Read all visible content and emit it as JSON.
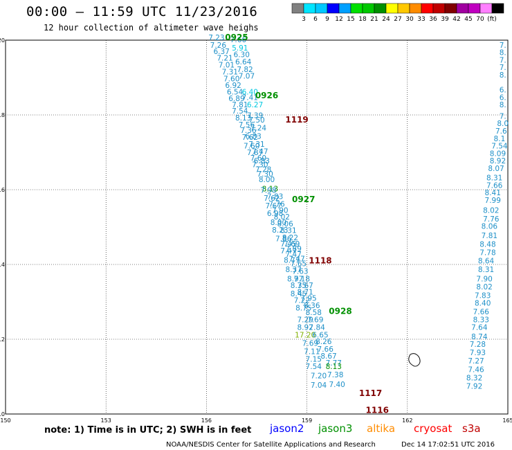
{
  "header": {
    "title": "00:00 – 11:59 UTC 11/23/2016",
    "subtitle": "12 hour collection of altimeter wave heighs"
  },
  "legend": {
    "colors": [
      "#808080",
      "#00e5ff",
      "#00c8ff",
      "#0000ff",
      "#00a0ff",
      "#00e000",
      "#00c800",
      "#009000",
      "#ffff00",
      "#ffc800",
      "#ff8c00",
      "#ff0000",
      "#c00000",
      "#800000",
      "#a000a0",
      "#c000c0",
      "#ff80ff",
      "#000000"
    ],
    "labels": [
      "3",
      "6",
      "9",
      "12",
      "15",
      "18",
      "21",
      "24",
      "27",
      "30",
      "33",
      "36",
      "39",
      "42",
      "45",
      "70",
      "(ft)"
    ]
  },
  "footer": {
    "note": "note: 1) Time is in UTC; 2) SWH is in feet",
    "satellites": [
      {
        "name": "jason2",
        "color": "#0000ff"
      },
      {
        "name": "jason3",
        "color": "#009000"
      },
      {
        "name": "altika",
        "color": "#ff8c00"
      },
      {
        "name": "cryosat",
        "color": "#ff0000"
      },
      {
        "name": "s3a",
        "color": "#c00000"
      }
    ],
    "credit": "NOAA/NESDIS Center for Satellite Applications and Research",
    "timestamp": "Dec 14 17:02:51 UTC 2016"
  },
  "chart_data": {
    "type": "scatter",
    "xlim": [
      150,
      165
    ],
    "ylim": [
      10,
      20
    ],
    "xticks": [
      "150",
      "153",
      "156",
      "159",
      "162",
      "165"
    ],
    "yticks": [
      "10",
      "12",
      "14",
      "16",
      "18",
      "20"
    ],
    "grid": true,
    "track_labels": [
      {
        "text": "0925",
        "lon": 156.9,
        "lat": 20.0,
        "color": "#009000"
      },
      {
        "text": "0926",
        "lon": 157.8,
        "lat": 18.44,
        "color": "#009000"
      },
      {
        "text": "1119",
        "lon": 158.7,
        "lat": 17.8,
        "color": "#800000"
      },
      {
        "text": "0927",
        "lon": 158.9,
        "lat": 15.67,
        "color": "#009000"
      },
      {
        "text": "1118",
        "lon": 159.4,
        "lat": 14.03,
        "color": "#800000"
      },
      {
        "text": "0928",
        "lon": 160.0,
        "lat": 12.68,
        "color": "#009000"
      },
      {
        "text": "1117",
        "lon": 160.9,
        "lat": 10.48,
        "color": "#800000"
      },
      {
        "text": "1116",
        "lon": 161.1,
        "lat": 10.03,
        "color": "#800000"
      }
    ],
    "points": [
      {
        "lon": 156.3,
        "lat": 20.0,
        "v": "7.23",
        "c": "#1e90c8"
      },
      {
        "lon": 156.95,
        "lat": 19.94,
        "v": "7.66",
        "c": "#1e90c8"
      },
      {
        "lon": 156.35,
        "lat": 19.8,
        "v": "7.26",
        "c": "#1e90c8"
      },
      {
        "lon": 157.0,
        "lat": 19.72,
        "v": "5.91",
        "c": "#00c8e0"
      },
      {
        "lon": 156.45,
        "lat": 19.63,
        "v": "6.37",
        "c": "#1e90c8"
      },
      {
        "lon": 157.05,
        "lat": 19.55,
        "v": "6.30",
        "c": "#1e90c8"
      },
      {
        "lon": 156.55,
        "lat": 19.45,
        "v": "7.21",
        "c": "#1e90c8"
      },
      {
        "lon": 157.1,
        "lat": 19.35,
        "v": "6.64",
        "c": "#1e90c8"
      },
      {
        "lon": 156.6,
        "lat": 19.27,
        "v": "7.01",
        "c": "#1e90c8"
      },
      {
        "lon": 157.15,
        "lat": 19.15,
        "v": "7.82",
        "c": "#1e90c8"
      },
      {
        "lon": 156.7,
        "lat": 19.08,
        "v": "7.31",
        "c": "#1e90c8"
      },
      {
        "lon": 157.2,
        "lat": 18.97,
        "v": "7.07",
        "c": "#1e90c8"
      },
      {
        "lon": 156.75,
        "lat": 18.9,
        "v": "7.60",
        "c": "#1e90c8"
      },
      {
        "lon": 156.8,
        "lat": 18.72,
        "v": "6.92",
        "c": "#1e90c8"
      },
      {
        "lon": 157.3,
        "lat": 18.55,
        "v": "6.40",
        "c": "#00c8e0"
      },
      {
        "lon": 156.85,
        "lat": 18.55,
        "v": "6.54",
        "c": "#1e90c8"
      },
      {
        "lon": 157.3,
        "lat": 18.4,
        "v": "7.41",
        "c": "#1e90c8"
      },
      {
        "lon": 156.9,
        "lat": 18.37,
        "v": "6.89",
        "c": "#1e90c8"
      },
      {
        "lon": 157.0,
        "lat": 18.2,
        "v": "7.81",
        "c": "#1e90c8"
      },
      {
        "lon": 157.45,
        "lat": 18.2,
        "v": "6.27",
        "c": "#00c8e0"
      },
      {
        "lon": 157.45,
        "lat": 17.92,
        "v": "7.39",
        "c": "#1e90c8"
      },
      {
        "lon": 157.0,
        "lat": 18.04,
        "v": "7.54",
        "c": "#1e90c8"
      },
      {
        "lon": 157.1,
        "lat": 17.85,
        "v": "8.13",
        "c": "#1e90c8"
      },
      {
        "lon": 157.5,
        "lat": 17.8,
        "v": "7.50",
        "c": "#1e90c8"
      },
      {
        "lon": 157.2,
        "lat": 17.67,
        "v": "7.56",
        "c": "#1e90c8"
      },
      {
        "lon": 157.55,
        "lat": 17.58,
        "v": "7.24",
        "c": "#1e90c8"
      },
      {
        "lon": 157.25,
        "lat": 17.52,
        "v": "7.36",
        "c": "#1e90c8"
      },
      {
        "lon": 157.4,
        "lat": 17.36,
        "v": "6.83",
        "c": "#1e90c8"
      },
      {
        "lon": 157.3,
        "lat": 17.33,
        "v": "7.62",
        "c": "#1e90c8"
      },
      {
        "lon": 157.5,
        "lat": 17.15,
        "v": "7.31",
        "c": "#1e90c8"
      },
      {
        "lon": 157.35,
        "lat": 17.1,
        "v": "7.60",
        "c": "#1e90c8"
      },
      {
        "lon": 157.6,
        "lat": 16.95,
        "v": "7.47",
        "c": "#1e90c8"
      },
      {
        "lon": 157.45,
        "lat": 16.93,
        "v": "7.87",
        "c": "#1e90c8"
      },
      {
        "lon": 157.55,
        "lat": 16.78,
        "v": "7.60",
        "c": "#1e90c8"
      },
      {
        "lon": 157.65,
        "lat": 16.7,
        "v": "6.83",
        "c": "#1e90c8"
      },
      {
        "lon": 157.6,
        "lat": 16.6,
        "v": "7.30",
        "c": "#1e90c8"
      },
      {
        "lon": 157.7,
        "lat": 16.47,
        "v": "7.28",
        "c": "#1e90c8"
      },
      {
        "lon": 157.75,
        "lat": 16.35,
        "v": "7.30",
        "c": "#1e90c8"
      },
      {
        "lon": 157.8,
        "lat": 16.2,
        "v": "8.00",
        "c": "#1e90c8"
      },
      {
        "lon": 157.9,
        "lat": 15.95,
        "v": "8.13",
        "c": "#009000"
      },
      {
        "lon": 157.85,
        "lat": 15.92,
        "v": "7.98",
        "c": "#1e90c8"
      },
      {
        "lon": 158.05,
        "lat": 15.75,
        "v": "7.83",
        "c": "#1e90c8"
      },
      {
        "lon": 157.95,
        "lat": 15.7,
        "v": "7.62",
        "c": "#1e90c8"
      },
      {
        "lon": 158.1,
        "lat": 15.55,
        "v": "7.76",
        "c": "#1e90c8"
      },
      {
        "lon": 158.0,
        "lat": 15.5,
        "v": "7.67",
        "c": "#1e90c8"
      },
      {
        "lon": 158.2,
        "lat": 15.38,
        "v": "7.90",
        "c": "#1e90c8"
      },
      {
        "lon": 158.05,
        "lat": 15.3,
        "v": "6.98",
        "c": "#1e90c8"
      },
      {
        "lon": 158.25,
        "lat": 15.2,
        "v": "8.02",
        "c": "#1e90c8"
      },
      {
        "lon": 158.15,
        "lat": 15.06,
        "v": "8.00",
        "c": "#1e90c8"
      },
      {
        "lon": 158.35,
        "lat": 15.02,
        "v": "8.06",
        "c": "#1e90c8"
      },
      {
        "lon": 158.2,
        "lat": 14.85,
        "v": "8.23",
        "c": "#1e90c8"
      },
      {
        "lon": 158.45,
        "lat": 14.84,
        "v": "8.31",
        "c": "#1e90c8"
      },
      {
        "lon": 158.5,
        "lat": 14.65,
        "v": "8.22",
        "c": "#1e90c8"
      },
      {
        "lon": 158.3,
        "lat": 14.62,
        "v": "7.86",
        "c": "#1e90c8"
      },
      {
        "lon": 158.55,
        "lat": 14.48,
        "v": "7.69",
        "c": "#1e90c8"
      },
      {
        "lon": 158.45,
        "lat": 14.48,
        "v": "7.45",
        "c": "#1e90c8"
      },
      {
        "lon": 158.6,
        "lat": 14.35,
        "v": "7.89",
        "c": "#1e90c8"
      },
      {
        "lon": 158.45,
        "lat": 14.3,
        "v": "7.47",
        "c": "#1e90c8"
      },
      {
        "lon": 158.6,
        "lat": 14.2,
        "v": "7.47",
        "c": "#1e90c8"
      },
      {
        "lon": 158.7,
        "lat": 14.08,
        "v": "7.47",
        "c": "#1e90c8"
      },
      {
        "lon": 158.55,
        "lat": 14.05,
        "v": "8.77",
        "c": "#1e90c8"
      },
      {
        "lon": 158.75,
        "lat": 13.95,
        "v": "7.65",
        "c": "#1e90c8"
      },
      {
        "lon": 158.6,
        "lat": 13.8,
        "v": "8.37",
        "c": "#1e90c8"
      },
      {
        "lon": 158.8,
        "lat": 13.75,
        "v": "7.63",
        "c": "#1e90c8"
      },
      {
        "lon": 158.65,
        "lat": 13.55,
        "v": "8.97",
        "c": "#1e90c8"
      },
      {
        "lon": 158.85,
        "lat": 13.55,
        "v": "7.18",
        "c": "#1e90c8"
      },
      {
        "lon": 158.75,
        "lat": 13.37,
        "v": "8.35",
        "c": "#1e90c8"
      },
      {
        "lon": 158.95,
        "lat": 13.37,
        "v": "7.67",
        "c": "#1e90c8"
      },
      {
        "lon": 158.95,
        "lat": 13.19,
        "v": "8.71",
        "c": "#1e90c8"
      },
      {
        "lon": 158.75,
        "lat": 13.15,
        "v": "8.45",
        "c": "#1e90c8"
      },
      {
        "lon": 159.05,
        "lat": 13.03,
        "v": "7.95",
        "c": "#1e90c8"
      },
      {
        "lon": 158.85,
        "lat": 12.97,
        "v": "7.22",
        "c": "#1e90c8"
      },
      {
        "lon": 159.15,
        "lat": 12.83,
        "v": "8.36",
        "c": "#1e90c8"
      },
      {
        "lon": 158.9,
        "lat": 12.77,
        "v": "8.75",
        "c": "#1e90c8"
      },
      {
        "lon": 159.2,
        "lat": 12.65,
        "v": "8.58",
        "c": "#1e90c8"
      },
      {
        "lon": 158.95,
        "lat": 12.45,
        "v": "7.29",
        "c": "#1e90c8"
      },
      {
        "lon": 159.25,
        "lat": 12.45,
        "v": "7.69",
        "c": "#1e90c8"
      },
      {
        "lon": 158.95,
        "lat": 12.25,
        "v": "8.92",
        "c": "#1e90c8"
      },
      {
        "lon": 159.3,
        "lat": 12.25,
        "v": "7.84",
        "c": "#1e90c8"
      },
      {
        "lon": 158.95,
        "lat": 12.05,
        "v": "17.20",
        "c": "#80b000"
      },
      {
        "lon": 159.4,
        "lat": 12.05,
        "v": "6.65",
        "c": "#1e90c8"
      },
      {
        "lon": 159.5,
        "lat": 11.87,
        "v": "8.26",
        "c": "#1e90c8"
      },
      {
        "lon": 159.1,
        "lat": 11.82,
        "v": "7.69",
        "c": "#1e90c8"
      },
      {
        "lon": 159.55,
        "lat": 11.67,
        "v": "7.66",
        "c": "#1e90c8"
      },
      {
        "lon": 159.15,
        "lat": 11.6,
        "v": "7.11",
        "c": "#1e90c8"
      },
      {
        "lon": 159.65,
        "lat": 11.48,
        "v": "8.67",
        "c": "#1e90c8"
      },
      {
        "lon": 159.2,
        "lat": 11.4,
        "v": "7.15",
        "c": "#1e90c8"
      },
      {
        "lon": 159.8,
        "lat": 11.3,
        "v": "7.77",
        "c": "#1e90c8"
      },
      {
        "lon": 159.2,
        "lat": 11.2,
        "v": "7.54",
        "c": "#1e90c8"
      },
      {
        "lon": 159.8,
        "lat": 11.2,
        "v": "8.13",
        "c": "#009000"
      },
      {
        "lon": 159.85,
        "lat": 10.98,
        "v": "7.38",
        "c": "#1e90c8"
      },
      {
        "lon": 159.35,
        "lat": 10.95,
        "v": "7.20",
        "c": "#1e90c8"
      },
      {
        "lon": 159.35,
        "lat": 10.7,
        "v": "7.04",
        "c": "#1e90c8"
      },
      {
        "lon": 159.9,
        "lat": 10.72,
        "v": "7.40",
        "c": "#1e90c8"
      },
      {
        "lon": 164.85,
        "lat": 19.8,
        "v": "7.",
        "c": "#1e90c8"
      },
      {
        "lon": 164.85,
        "lat": 19.6,
        "v": "8.",
        "c": "#1e90c8"
      },
      {
        "lon": 164.85,
        "lat": 19.4,
        "v": "7.",
        "c": "#1e90c8"
      },
      {
        "lon": 164.85,
        "lat": 19.2,
        "v": "7.",
        "c": "#1e90c8"
      },
      {
        "lon": 164.85,
        "lat": 19.0,
        "v": "8.",
        "c": "#1e90c8"
      },
      {
        "lon": 164.85,
        "lat": 18.6,
        "v": "6.",
        "c": "#1e90c8"
      },
      {
        "lon": 164.85,
        "lat": 18.4,
        "v": "6.",
        "c": "#1e90c8"
      },
      {
        "lon": 164.85,
        "lat": 18.2,
        "v": "8.",
        "c": "#1e90c8"
      },
      {
        "lon": 164.85,
        "lat": 17.9,
        "v": "7.",
        "c": "#1e90c8"
      },
      {
        "lon": 164.85,
        "lat": 17.7,
        "v": "8.0",
        "c": "#1e90c8"
      },
      {
        "lon": 164.8,
        "lat": 17.5,
        "v": "7.6",
        "c": "#1e90c8"
      },
      {
        "lon": 164.75,
        "lat": 17.3,
        "v": "8.1",
        "c": "#1e90c8"
      },
      {
        "lon": 164.75,
        "lat": 17.1,
        "v": "7.54",
        "c": "#1e90c8"
      },
      {
        "lon": 164.7,
        "lat": 16.9,
        "v": "8.09",
        "c": "#1e90c8"
      },
      {
        "lon": 164.7,
        "lat": 16.7,
        "v": "8.92",
        "c": "#1e90c8"
      },
      {
        "lon": 164.65,
        "lat": 16.5,
        "v": "8.07",
        "c": "#1e90c8"
      },
      {
        "lon": 164.6,
        "lat": 16.25,
        "v": "8.31",
        "c": "#1e90c8"
      },
      {
        "lon": 164.6,
        "lat": 16.05,
        "v": "7.66",
        "c": "#1e90c8"
      },
      {
        "lon": 164.55,
        "lat": 15.85,
        "v": "8.41",
        "c": "#1e90c8"
      },
      {
        "lon": 164.55,
        "lat": 15.65,
        "v": "7.99",
        "c": "#1e90c8"
      },
      {
        "lon": 164.5,
        "lat": 15.38,
        "v": "8.02",
        "c": "#1e90c8"
      },
      {
        "lon": 164.5,
        "lat": 15.15,
        "v": "7.76",
        "c": "#1e90c8"
      },
      {
        "lon": 164.45,
        "lat": 14.95,
        "v": "8.06",
        "c": "#1e90c8"
      },
      {
        "lon": 164.45,
        "lat": 14.7,
        "v": "7.81",
        "c": "#1e90c8"
      },
      {
        "lon": 164.4,
        "lat": 14.47,
        "v": "8.48",
        "c": "#1e90c8"
      },
      {
        "lon": 164.4,
        "lat": 14.25,
        "v": "7.78",
        "c": "#1e90c8"
      },
      {
        "lon": 164.35,
        "lat": 14.03,
        "v": "8.64",
        "c": "#1e90c8"
      },
      {
        "lon": 164.35,
        "lat": 13.8,
        "v": "8.31",
        "c": "#1e90c8"
      },
      {
        "lon": 164.3,
        "lat": 13.55,
        "v": "7.90",
        "c": "#1e90c8"
      },
      {
        "lon": 164.3,
        "lat": 13.33,
        "v": "8.02",
        "c": "#1e90c8"
      },
      {
        "lon": 164.25,
        "lat": 13.1,
        "v": "7.83",
        "c": "#1e90c8"
      },
      {
        "lon": 164.25,
        "lat": 12.9,
        "v": "8.40",
        "c": "#1e90c8"
      },
      {
        "lon": 164.2,
        "lat": 12.67,
        "v": "7.66",
        "c": "#1e90c8"
      },
      {
        "lon": 164.2,
        "lat": 12.45,
        "v": "8.33",
        "c": "#1e90c8"
      },
      {
        "lon": 164.15,
        "lat": 12.25,
        "v": "7.64",
        "c": "#1e90c8"
      },
      {
        "lon": 164.15,
        "lat": 12.0,
        "v": "8.74",
        "c": "#1e90c8"
      },
      {
        "lon": 164.1,
        "lat": 11.8,
        "v": "7.28",
        "c": "#1e90c8"
      },
      {
        "lon": 164.1,
        "lat": 11.57,
        "v": "7.93",
        "c": "#1e90c8"
      },
      {
        "lon": 164.05,
        "lat": 11.35,
        "v": "7.27",
        "c": "#1e90c8"
      },
      {
        "lon": 164.05,
        "lat": 11.12,
        "v": "7.46",
        "c": "#1e90c8"
      },
      {
        "lon": 164.0,
        "lat": 10.9,
        "v": "8.32",
        "c": "#1e90c8"
      },
      {
        "lon": 164.0,
        "lat": 10.68,
        "v": "7.92",
        "c": "#1e90c8"
      }
    ]
  }
}
